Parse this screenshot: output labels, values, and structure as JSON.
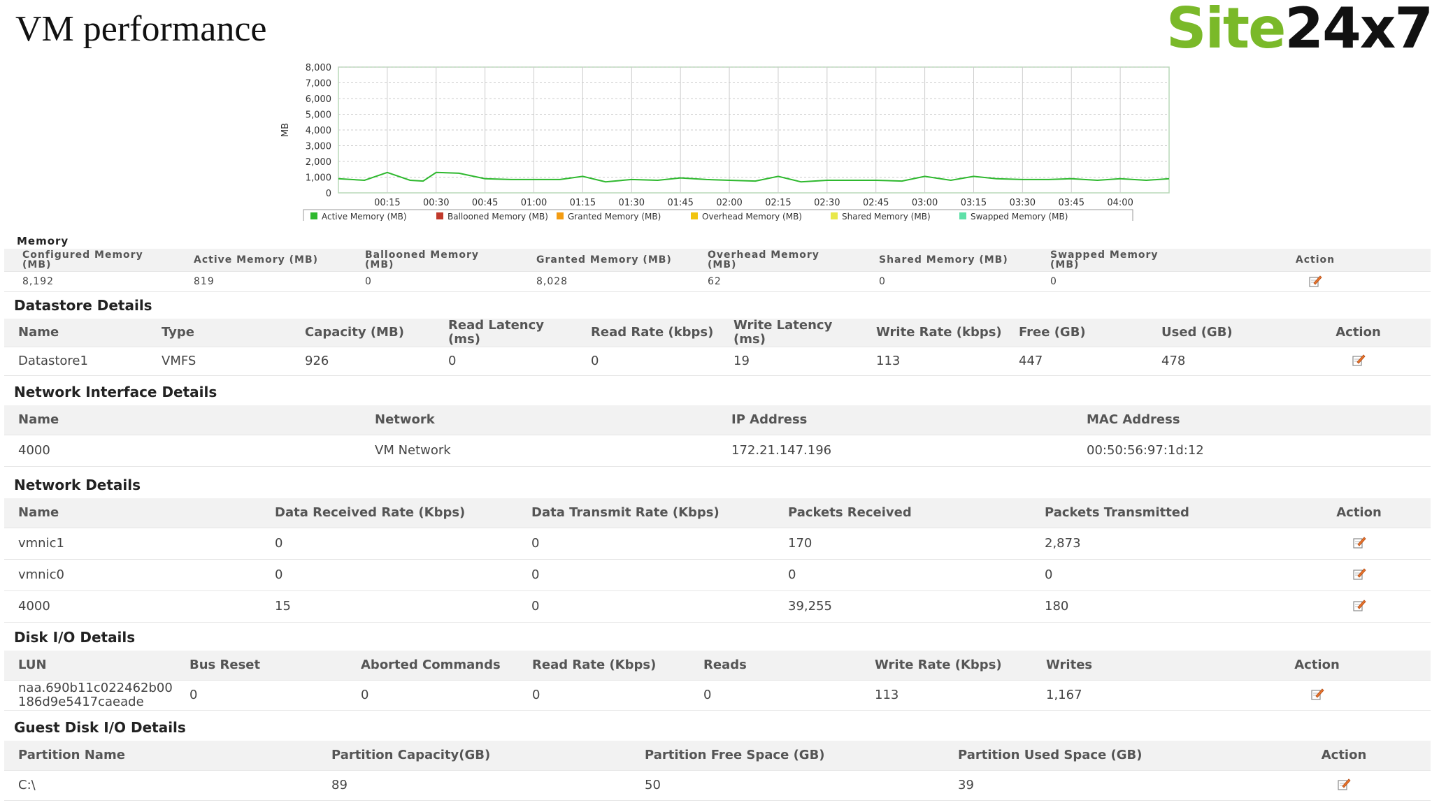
{
  "page_title": "VM performance",
  "logo": {
    "part1": "Site",
    "part2": "24x7"
  },
  "colors": {
    "brand_green": "#7ab929",
    "header_bg": "#f2f2f2"
  },
  "icons": {
    "action": "edit-icon"
  },
  "chart_data": {
    "type": "line",
    "ylabel": "MB",
    "ylim": [
      0,
      8000
    ],
    "yticks": [
      "0",
      "1,000",
      "2,000",
      "3,000",
      "4,000",
      "5,000",
      "6,000",
      "7,000",
      "8,000"
    ],
    "x_ticks": [
      "00:15",
      "00:30",
      "00:45",
      "01:00",
      "01:15",
      "01:30",
      "01:45",
      "02:00",
      "02:15",
      "02:30",
      "02:45",
      "03:00",
      "03:15",
      "03:30",
      "03:45",
      "04:00"
    ],
    "grid": true,
    "legend_position": "bottom",
    "series": [
      {
        "name": "Active Memory (MB)",
        "color": "#2eb82e",
        "x": [
          "00:00",
          "00:08",
          "00:15",
          "00:22",
          "00:26",
          "00:30",
          "00:37",
          "00:45",
          "00:53",
          "01:00",
          "01:08",
          "01:15",
          "01:22",
          "01:30",
          "01:38",
          "01:45",
          "01:53",
          "02:00",
          "02:08",
          "02:15",
          "02:22",
          "02:30",
          "02:38",
          "02:45",
          "02:53",
          "03:00",
          "03:08",
          "03:15",
          "03:22",
          "03:30",
          "03:38",
          "03:45",
          "03:53",
          "04:00",
          "04:08",
          "04:15"
        ],
        "values": [
          900,
          800,
          1300,
          800,
          750,
          1300,
          1250,
          900,
          850,
          850,
          850,
          1050,
          700,
          850,
          800,
          950,
          850,
          800,
          750,
          1050,
          700,
          800,
          800,
          800,
          750,
          1050,
          800,
          1050,
          900,
          850,
          850,
          900,
          800,
          900,
          800,
          900
        ]
      },
      {
        "name": "Ballooned Memory (MB)",
        "color": "#c0392b"
      },
      {
        "name": "Granted Memory (MB)",
        "color": "#f39c12"
      },
      {
        "name": "Overhead Memory (MB)",
        "color": "#f1c40f"
      },
      {
        "name": "Shared Memory (MB)",
        "color": "#e8e84a"
      },
      {
        "name": "Swapped Memory (MB)",
        "color": "#5fe0a8"
      }
    ]
  },
  "memory": {
    "title": "Memory",
    "headers": [
      "Configured Memory\n(MB)",
      "Active Memory (MB)",
      "Ballooned Memory\n(MB)",
      "Granted Memory (MB)",
      "Overhead Memory\n(MB)",
      "Shared Memory (MB)",
      "Swapped Memory\n(MB)",
      "Action"
    ],
    "rows": [
      [
        "8,192",
        "819",
        "0",
        "8,028",
        "62",
        "0",
        "0"
      ]
    ]
  },
  "datastore": {
    "title": "Datastore Details",
    "headers": [
      "Name",
      "Type",
      "Capacity (MB)",
      "Read Latency\n(ms)",
      "Read Rate (kbps)",
      "Write Latency\n(ms)",
      "Write Rate (kbps)",
      "Free (GB)",
      "Used (GB)",
      "Action"
    ],
    "rows": [
      [
        "Datastore1",
        "VMFS",
        "926",
        "0",
        "0",
        "19",
        "113",
        "447",
        "478"
      ]
    ]
  },
  "network_interface": {
    "title": "Network Interface Details",
    "headers": [
      "Name",
      "Network",
      "IP Address",
      "MAC Address"
    ],
    "rows": [
      [
        "4000",
        "VM Network",
        "172.21.147.196",
        "00:50:56:97:1d:12"
      ]
    ]
  },
  "network": {
    "title": "Network Details",
    "headers": [
      "Name",
      "Data Received Rate (Kbps)",
      "Data Transmit Rate (Kbps)",
      "Packets Received",
      "Packets Transmitted",
      "Action"
    ],
    "rows": [
      [
        "vmnic1",
        "0",
        "0",
        "170",
        "2,873"
      ],
      [
        "vmnic0",
        "0",
        "0",
        "0",
        "0"
      ],
      [
        "4000",
        "15",
        "0",
        "39,255",
        "180"
      ]
    ]
  },
  "disk_io": {
    "title": "Disk I/O Details",
    "headers": [
      "LUN",
      "Bus Reset",
      "Aborted Commands",
      "Read Rate (Kbps)",
      "Reads",
      "Write Rate (Kbps)",
      "Writes",
      "Action"
    ],
    "rows": [
      [
        "naa.690b11c022462b00\n186d9e5417caeade",
        "0",
        "0",
        "0",
        "0",
        "113",
        "1,167"
      ]
    ]
  },
  "guest_disk_io": {
    "title": "Guest Disk I/O Details",
    "headers": [
      "Partition Name",
      "Partition Capacity(GB)",
      "Partition Free Space (GB)",
      "Partition Used Space (GB)",
      "Action"
    ],
    "rows": [
      [
        "C:\\",
        "89",
        "50",
        "39"
      ]
    ]
  }
}
